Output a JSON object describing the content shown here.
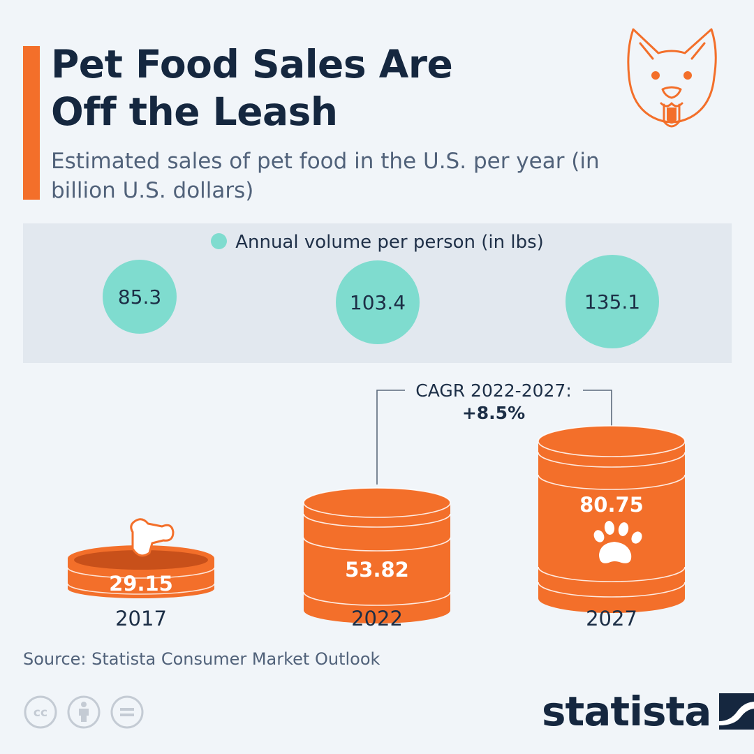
{
  "header": {
    "title": "Pet Food Sales Are Off the Leash",
    "subtitle": "Estimated sales of pet food in the U.S. per year (in billion U.S. dollars)"
  },
  "volume_panel": {
    "legend": "Annual volume per person (in lbs)",
    "values": [
      "85.3",
      "103.4",
      "135.1"
    ]
  },
  "annotation": {
    "cagr_label": "CAGR 2022-2027:",
    "cagr_value": "+8.5%"
  },
  "footer": {
    "source": "Source: Statista Consumer Market Outlook",
    "logo": "statista"
  },
  "colors": {
    "accent": "#f36f2a",
    "teal": "#7fdccf",
    "navy": "#15273f",
    "panel": "#e2e8ef"
  },
  "chart_data": {
    "type": "bar",
    "title": "Pet Food Sales Are Off the Leash",
    "subtitle": "Estimated sales of pet food in the U.S. per year (in billion U.S. dollars)",
    "categories": [
      "2017",
      "2022",
      "2027"
    ],
    "series": [
      {
        "name": "Sales (billion U.S. dollars)",
        "values": [
          29.15,
          53.82,
          80.75
        ],
        "labels": [
          "29.15",
          "53.82",
          "80.75"
        ]
      },
      {
        "name": "Annual volume per person (in lbs)",
        "values": [
          85.3,
          103.4,
          135.1
        ]
      }
    ],
    "xlabel": "",
    "ylabel": "",
    "annotation": "CAGR 2022-2027: +8.5%"
  }
}
